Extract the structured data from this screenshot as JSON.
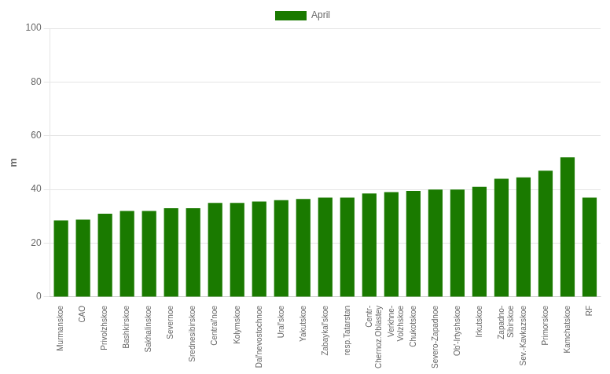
{
  "chart_data": {
    "type": "bar",
    "categories": [
      "Murmanskoe",
      "CAO",
      "Privolzhskoe",
      "Bashkirskoe",
      "Sakhalinskoe",
      "Severnoe",
      "Srednesibirskoe",
      "Central'noe",
      "Kolymskoe",
      "Dal'nevostochnoe",
      "Ural'skoe",
      "Yakutskoe",
      "Zabaykal'skoe",
      "resp.Tatarstan",
      "Centr-\nChernoz.Oblastey",
      "Verkhne-\nVolzhskoe",
      "Chukotskoe",
      "Severo-Zapadnoe",
      "Ob'-Irtyshskoe",
      "Irkutskoe",
      "Zapadno-\nSibirskoe",
      "Sev.-Kavkazskoe",
      "Primorskoe",
      "Kamchatskoe",
      "RF"
    ],
    "series": [
      {
        "name": "April",
        "color": "#1a7a00",
        "values": [
          28.5,
          28.8,
          31.0,
          32.0,
          32.0,
          33.0,
          33.0,
          35.0,
          35.0,
          35.5,
          36.0,
          36.5,
          37.0,
          37.0,
          38.5,
          39.0,
          39.5,
          40.0,
          40.0,
          41.0,
          44.0,
          44.5,
          47.0,
          52.0,
          37.0
        ]
      }
    ],
    "ylabel": "m",
    "ylim": [
      0,
      100
    ],
    "yticks": [
      0,
      20,
      40,
      60,
      80,
      100
    ],
    "grid": true,
    "legend": "top"
  }
}
